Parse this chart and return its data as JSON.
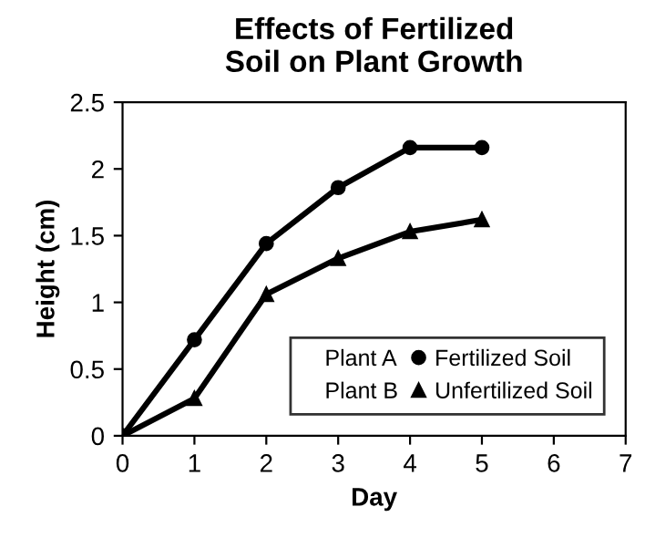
{
  "chart_data": {
    "type": "line",
    "title": "Effects of Fertilized\nSoil on Plant Growth",
    "xlabel": "Day",
    "ylabel": "Height (cm)",
    "x": [
      0,
      1,
      2,
      3,
      4,
      5
    ],
    "series": [
      {
        "name": "Plant A",
        "color": "#000000",
        "marker": "circle",
        "values": [
          0,
          0.72,
          1.44,
          1.86,
          2.16,
          2.16
        ]
      },
      {
        "name": "Plant B",
        "color": "#000000",
        "marker": "triangle",
        "values": [
          0,
          0.28,
          1.06,
          1.33,
          1.53,
          1.62
        ]
      }
    ],
    "xlim": [
      0,
      7
    ],
    "xticks": [
      0,
      1,
      2,
      3,
      4,
      5,
      6,
      7
    ],
    "ylim": [
      0,
      2.5
    ],
    "yticks": [
      0,
      0.5,
      1,
      1.5,
      2,
      2.5
    ],
    "annotations": [
      "Fertilized Soil",
      "Unfertilized Soil"
    ],
    "grid": false,
    "legend": "bottom right",
    "line_style": "solid"
  }
}
